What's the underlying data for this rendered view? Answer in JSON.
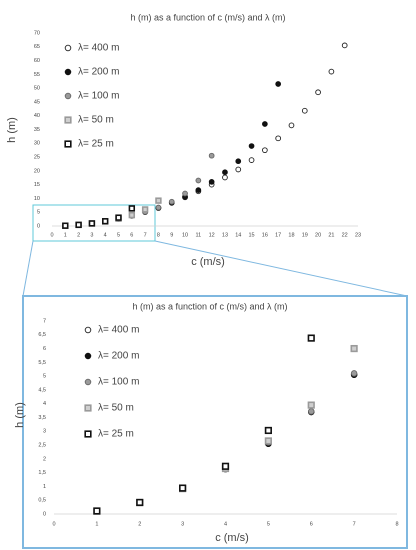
{
  "chart_data": [
    {
      "type": "scatter",
      "title": "h (m) as a function of c (m/s) and λ (m)",
      "x_label": "c (m/s)",
      "y_label": "h (m)",
      "xlim": [
        0,
        23
      ],
      "ylim": [
        0,
        70
      ],
      "xticks": [
        0,
        1,
        2,
        3,
        4,
        5,
        6,
        7,
        8,
        9,
        10,
        11,
        12,
        13,
        14,
        15,
        16,
        17,
        18,
        19,
        20,
        21,
        22,
        23
      ],
      "yticks": [
        0,
        5,
        10,
        15,
        20,
        25,
        30,
        35,
        40,
        45,
        50,
        55,
        60,
        65,
        70
      ],
      "series": [
        {
          "name": "λ= 400 m",
          "marker": "circle",
          "color": "#ffffff",
          "edge": "#222222",
          "x": [
            1,
            2,
            3,
            4,
            5,
            6,
            7,
            8,
            9,
            10,
            11,
            12,
            13,
            14,
            15,
            16,
            17,
            18,
            19,
            20,
            21,
            22
          ],
          "values": [
            0.1,
            0.41,
            0.92,
            1.63,
            2.55,
            3.7,
            5.05,
            6.5,
            8.4,
            10.4,
            12.6,
            15,
            17.6,
            20.5,
            23.9,
            27.5,
            31.8,
            36.5,
            41.8,
            48.5,
            56,
            65.5
          ]
        },
        {
          "name": "λ= 200 m",
          "marker": "circle",
          "color": "#111111",
          "edge": "#111111",
          "x": [
            1,
            2,
            3,
            4,
            5,
            6,
            7,
            8,
            9,
            10,
            11,
            12,
            13,
            14,
            15,
            16,
            17
          ],
          "values": [
            0.1,
            0.41,
            0.92,
            1.63,
            2.55,
            3.7,
            5.05,
            6.6,
            8.5,
            10.6,
            13,
            16,
            19.5,
            23.5,
            29,
            37,
            51.5
          ]
        },
        {
          "name": "λ= 100 m",
          "marker": "circle",
          "color": "#9a9a9a",
          "edge": "#666666",
          "x": [
            1,
            2,
            3,
            4,
            5,
            6,
            7,
            8,
            9,
            10,
            11,
            12
          ],
          "values": [
            0.1,
            0.41,
            0.92,
            1.63,
            2.6,
            3.72,
            5.1,
            6.7,
            8.8,
            11.8,
            16.5,
            25.5
          ]
        },
        {
          "name": "λ= 50 m",
          "marker": "square",
          "color": "#cfcfcf",
          "edge": "#9a9a9a",
          "x": [
            1,
            2,
            3,
            4,
            5,
            6,
            7,
            8
          ],
          "values": [
            0.1,
            0.41,
            0.92,
            1.65,
            2.65,
            3.95,
            6.0,
            9.2
          ]
        },
        {
          "name": "λ= 25 m",
          "marker": "square",
          "color": "#ffffff",
          "edge": "#111111",
          "x": [
            1,
            2,
            3,
            4,
            5,
            6
          ],
          "values": [
            0.11,
            0.42,
            0.94,
            1.73,
            3.03,
            6.38
          ]
        }
      ]
    },
    {
      "type": "scatter",
      "title": "h (m) as a function of c (m/s) and λ (m)",
      "x_label": "c (m/s)",
      "y_label": "h (m)",
      "xlim": [
        0,
        8
      ],
      "ylim": [
        0,
        7
      ],
      "xticks": [
        0,
        1,
        2,
        3,
        4,
        5,
        6,
        7,
        8
      ],
      "yticks": [
        0,
        {
          "value": 0.5,
          "label": "0,5"
        },
        1,
        {
          "value": 1.5,
          "label": "1,5"
        },
        2,
        {
          "value": 2.5,
          "label": "2,5"
        },
        3,
        {
          "value": 3.5,
          "label": "3,5"
        },
        4,
        {
          "value": 4.5,
          "label": "4,5"
        },
        5,
        {
          "value": 5.5,
          "label": "5,5"
        },
        6,
        {
          "value": 6.5,
          "label": "6,5"
        },
        7
      ],
      "series": [
        {
          "name": "λ= 400 m",
          "marker": "circle",
          "color": "#ffffff",
          "edge": "#222222",
          "x": [
            1,
            2,
            3,
            4,
            5,
            6,
            7
          ],
          "values": [
            0.1,
            0.41,
            0.92,
            1.63,
            2.55,
            3.7,
            5.05
          ]
        },
        {
          "name": "λ= 200 m",
          "marker": "circle",
          "color": "#111111",
          "edge": "#111111",
          "x": [
            1,
            2,
            3,
            4,
            5,
            6,
            7
          ],
          "values": [
            0.1,
            0.41,
            0.92,
            1.63,
            2.55,
            3.7,
            5.05
          ]
        },
        {
          "name": "λ= 100 m",
          "marker": "circle",
          "color": "#9a9a9a",
          "edge": "#666666",
          "x": [
            1,
            2,
            3,
            4,
            5,
            6,
            7
          ],
          "values": [
            0.1,
            0.41,
            0.92,
            1.63,
            2.6,
            3.72,
            5.1
          ]
        },
        {
          "name": "λ= 50 m",
          "marker": "square",
          "color": "#cfcfcf",
          "edge": "#9a9a9a",
          "x": [
            1,
            2,
            3,
            4,
            5,
            6,
            7
          ],
          "values": [
            0.1,
            0.41,
            0.92,
            1.65,
            2.65,
            3.95,
            6.0
          ]
        },
        {
          "name": "λ= 25 m",
          "marker": "square",
          "color": "#ffffff",
          "edge": "#111111",
          "x": [
            1,
            2,
            3,
            4,
            5,
            6
          ],
          "values": [
            0.11,
            0.42,
            0.94,
            1.73,
            3.03,
            6.38
          ]
        }
      ]
    }
  ]
}
